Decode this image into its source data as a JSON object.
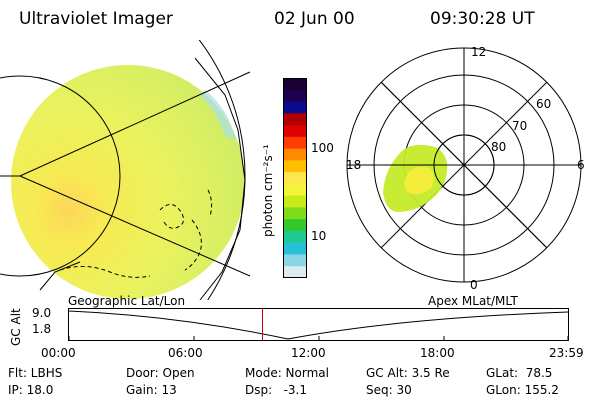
{
  "header": {
    "instrument": "Ultraviolet Imager",
    "date": "02 Jun 00",
    "time": "09:30:28 UT"
  },
  "colorbar": {
    "unit_label": "photon cm⁻²s⁻¹",
    "ticks": [
      "100",
      "10"
    ],
    "colors": [
      "#1a0033",
      "#1d0050",
      "#0a0a8a",
      "#b00000",
      "#e00000",
      "#ff3d00",
      "#ff8a00",
      "#ffbf00",
      "#ffe64d",
      "#f2f53a",
      "#c8ec1a",
      "#7fdc19",
      "#33c92a",
      "#1fc995",
      "#27c0d6",
      "#8ad6e6",
      "#dcecef"
    ]
  },
  "polar_plot": {
    "mlt_labels": {
      "top": "12",
      "left": "18",
      "right": "6",
      "bottom": "0"
    },
    "lat_labels": [
      "60",
      "70",
      "80"
    ]
  },
  "timeline": {
    "left_label": "Geographic Lat/Lon",
    "right_label": "Apex MLat/MLT",
    "y_axis_label": "GC Alt",
    "y_ticks": [
      "9.0",
      "1.8"
    ],
    "x_ticks": [
      "00:00",
      "06:00",
      "12:00",
      "18:00",
      "23:59"
    ],
    "current_time_marker": "09:30"
  },
  "status": {
    "filter": "Flt: LBHS",
    "ip": "IP: 18.0",
    "door": "Door: Open",
    "gain": "Gain: 13",
    "mode": "Mode: Normal",
    "dsp": "Dsp:   -3.1",
    "gc_alt": "GC Alt: 3.5 Re",
    "seq": "Seq: 30",
    "glat": "GLat:  78.5",
    "glon": "GLon: 155.2"
  },
  "accent_colors": {
    "marker": "#cc0000",
    "earth_fill": "#e9f07a"
  }
}
